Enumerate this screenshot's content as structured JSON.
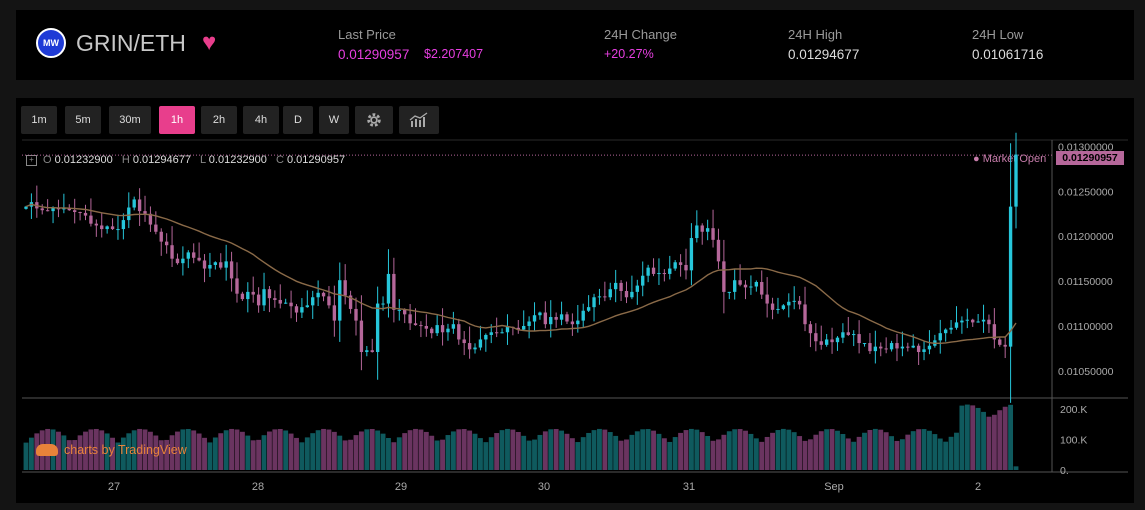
{
  "header": {
    "logo_text": "MW",
    "pair": "GRIN/ETH",
    "last_price_label": "Last Price",
    "last_price_eth": "0.01290957",
    "last_price_usd": "$2.207407",
    "change_label": "24H Change",
    "change_value": "+20.27%",
    "high_label": "24H High",
    "high_value": "0.01294677",
    "low_label": "24H Low",
    "low_value": "0.01061716"
  },
  "toolbar": {
    "intervals": [
      "1m",
      "5m",
      "30m",
      "1h",
      "2h",
      "4h",
      "D",
      "W"
    ],
    "active": "1h",
    "settings_icon": "gear-icon",
    "indicators_icon": "chart-bars-icon"
  },
  "ohlc": {
    "o_label": "O",
    "o": "0.01232900",
    "h_label": "H",
    "h": "0.01294677",
    "l_label": "L",
    "l": "0.01232900",
    "c_label": "C",
    "c": "0.01290957"
  },
  "market_open": "Market Open",
  "current_price_tag": "0.01290957",
  "branding": "charts by TradingView",
  "colors": {
    "up": "#26c6da",
    "down": "#b5679a",
    "ma": "#8a6a48",
    "accent": "#e83e8c"
  },
  "chart_data": {
    "type": "line",
    "title": "",
    "xlabel": "",
    "ylabel": "",
    "x_ticks": [
      "27",
      "28",
      "29",
      "30",
      "31",
      "Sep",
      "2"
    ],
    "y_ticks": [
      "0.01300000",
      "0.01250000",
      "0.01200000",
      "0.01150000",
      "0.01100000",
      "0.01050000"
    ],
    "ylim": [
      0.01022,
      0.01305
    ],
    "volume_ticks": [
      "200.K",
      "100.K",
      "0."
    ],
    "volume_ylim": [
      0,
      230000
    ],
    "series": [
      {
        "values": [
          0.01233,
          0.01238,
          0.01231,
          0.01229,
          0.01228,
          0.01232,
          0.0123,
          0.01231,
          0.01229,
          0.01227,
          0.01226,
          0.01223,
          0.01214,
          0.01212,
          0.01208,
          0.01211,
          0.01208,
          0.01208,
          0.01218,
          0.01232,
          0.01241,
          0.01228,
          0.01225,
          0.01213,
          0.01205,
          0.01194,
          0.0119,
          0.01175,
          0.0117,
          0.01175,
          0.01182,
          0.01176,
          0.01173,
          0.01164,
          0.01168,
          0.01171,
          0.01165,
          0.01172,
          0.01153,
          0.01136,
          0.0113,
          0.01138,
          0.01135,
          0.01123,
          0.01141,
          0.01131,
          0.01129,
          0.01125,
          0.01126,
          0.01122,
          0.01115,
          0.01121,
          0.01123,
          0.01132,
          0.01137,
          0.01133,
          0.01123,
          0.01106,
          0.01151,
          0.01134,
          0.01119,
          0.01106,
          0.01071,
          0.01073,
          0.01071,
          0.01125,
          0.01125,
          0.01158,
          0.01118,
          0.01118,
          0.01113,
          0.01103,
          0.01101,
          0.011,
          0.01097,
          0.01092,
          0.01101,
          0.01093,
          0.01097,
          0.01102,
          0.01085,
          0.01081,
          0.01074,
          0.01076,
          0.01085,
          0.0109,
          0.01093,
          0.01092,
          0.01093,
          0.01099,
          0.01098,
          0.01096,
          0.011,
          0.01105,
          0.01112,
          0.01115,
          0.01102,
          0.0111,
          0.01107,
          0.01113,
          0.01105,
          0.01102,
          0.01106,
          0.01117,
          0.01121,
          0.01132,
          0.01133,
          0.01132,
          0.01141,
          0.01148,
          0.01139,
          0.01132,
          0.01138,
          0.01145,
          0.01156,
          0.01165,
          0.01158,
          0.01159,
          0.01158,
          0.01164,
          0.01171,
          0.01168,
          0.01162,
          0.01198,
          0.01212,
          0.01205,
          0.01209,
          0.01196,
          0.01172,
          0.01138,
          0.01138,
          0.01151,
          0.01146,
          0.01143,
          0.01144,
          0.01149,
          0.01135,
          0.01125,
          0.01118,
          0.01119,
          0.01123,
          0.01127,
          0.01128,
          0.01124,
          0.01102,
          0.01092,
          0.01083,
          0.01079,
          0.01085,
          0.01082,
          0.01087,
          0.01093,
          0.0109,
          0.01091,
          0.01081,
          0.01081,
          0.01072,
          0.01077,
          0.01075,
          0.01074,
          0.01081,
          0.01075,
          0.01077,
          0.01076,
          0.01078,
          0.01071,
          0.01074,
          0.01078,
          0.01084,
          0.01092,
          0.01096,
          0.01098,
          0.01104,
          0.01106,
          0.01107,
          0.01104,
          0.01105,
          0.01107,
          0.01102,
          0.01085,
          0.01079,
          0.01077,
          0.01233,
          0.01291
        ]
      }
    ]
  }
}
